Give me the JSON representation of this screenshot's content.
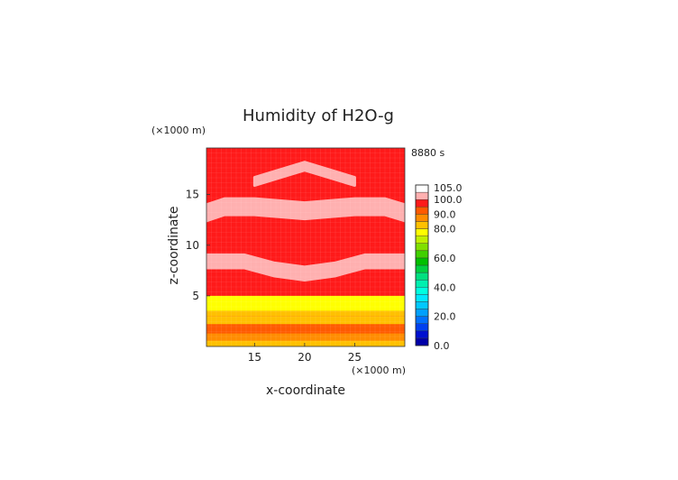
{
  "chart_data": {
    "type": "heatmap",
    "title": "Humidity of H2O-g",
    "time_label": "8880 s",
    "xlabel": "x-coordinate",
    "ylabel": "z-coordinate",
    "x_unit": "(×1000 m)",
    "y_unit": "(×1000 m)",
    "xlim": [
      10.2,
      30
    ],
    "ylim": [
      0,
      19.6
    ],
    "x_ticks": [
      15,
      20,
      25
    ],
    "y_ticks": [
      5,
      10,
      15
    ],
    "grid": false,
    "legend_position": "right",
    "colorbar": {
      "min": 0,
      "max": 105,
      "labels": [
        "0.0",
        "20.0",
        "40.0",
        "60.0",
        "80.0",
        "90.0",
        "100.0",
        "105.0"
      ],
      "bands": [
        {
          "from": 0,
          "to": 5,
          "color": "#0000a8"
        },
        {
          "from": 5,
          "to": 10,
          "color": "#0010d0"
        },
        {
          "from": 10,
          "to": 15,
          "color": "#0040f0"
        },
        {
          "from": 15,
          "to": 20,
          "color": "#0070ff"
        },
        {
          "from": 20,
          "to": 25,
          "color": "#00a0ff"
        },
        {
          "from": 25,
          "to": 30,
          "color": "#00c8ff"
        },
        {
          "from": 30,
          "to": 35,
          "color": "#00e8ff"
        },
        {
          "from": 35,
          "to": 40,
          "color": "#00ffe0"
        },
        {
          "from": 40,
          "to": 45,
          "color": "#00f0b0"
        },
        {
          "from": 45,
          "to": 50,
          "color": "#00e080"
        },
        {
          "from": 50,
          "to": 55,
          "color": "#00d040"
        },
        {
          "from": 55,
          "to": 60,
          "color": "#00c000"
        },
        {
          "from": 60,
          "to": 65,
          "color": "#40d000"
        },
        {
          "from": 65,
          "to": 70,
          "color": "#80e000"
        },
        {
          "from": 70,
          "to": 75,
          "color": "#c0f000"
        },
        {
          "from": 75,
          "to": 80,
          "color": "#ffff00"
        },
        {
          "from": 80,
          "to": 85,
          "color": "#ffc000"
        },
        {
          "from": 85,
          "to": 90,
          "color": "#ff8c00"
        },
        {
          "from": 90,
          "to": 95,
          "color": "#ff5a00"
        },
        {
          "from": 95,
          "to": 100,
          "color": "#ff1a1a"
        },
        {
          "from": 100,
          "to": 105,
          "color": "#ffb0b0"
        },
        {
          "from": 105,
          "to": 110,
          "color": "#ffffff"
        }
      ]
    },
    "field": {
      "background": "#ff1a1a",
      "layers": [
        {
          "z_from": 0,
          "z_to": 0.6,
          "value": 85,
          "color": "#ffc000"
        },
        {
          "z_from": 0.6,
          "z_to": 1.3,
          "value": 90,
          "color": "#ff8c00"
        },
        {
          "z_from": 1.3,
          "z_to": 2.2,
          "value": 92,
          "color": "#ff5a00"
        },
        {
          "z_from": 2.2,
          "z_to": 3.0,
          "value": 85,
          "color": "#ffc000"
        },
        {
          "z_from": 3.0,
          "z_to": 3.5,
          "value": 82,
          "color": "#ffc000"
        },
        {
          "z_from": 3.5,
          "z_to": 5.0,
          "value": 78,
          "color": "#ffff00"
        }
      ],
      "high_humidity_patches": [
        {
          "x": [
            15,
            20,
            25
          ],
          "z": [
            16.3,
            17.8,
            16.3
          ],
          "thickness": 0.8,
          "value": 102
        },
        {
          "x": [
            10.2,
            12,
            15,
            20,
            25,
            28,
            30
          ],
          "z": [
            13.2,
            13.8,
            13.8,
            13.4,
            13.8,
            13.8,
            13.2
          ],
          "thickness": 1.6,
          "value": 102
        },
        {
          "x": [
            10.2,
            14,
            17,
            20,
            23,
            26,
            30
          ],
          "z": [
            8.4,
            8.4,
            7.6,
            7.2,
            7.6,
            8.4,
            8.4
          ],
          "thickness": 1.3,
          "value": 102
        }
      ]
    }
  }
}
